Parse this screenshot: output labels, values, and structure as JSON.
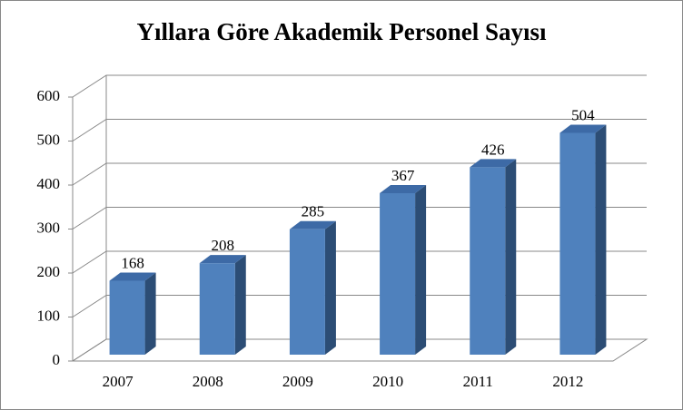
{
  "chart_data": {
    "type": "bar3d",
    "title": "Yıllara Göre Akademik Personel Sayısı",
    "categories": [
      "2007",
      "2008",
      "2009",
      "2010",
      "2011",
      "2012"
    ],
    "values": [
      168,
      208,
      285,
      367,
      426,
      504
    ],
    "color": "#4f81bd",
    "ylim": [
      0,
      600
    ],
    "yticks": [
      0,
      100,
      200,
      300,
      400,
      500,
      600
    ],
    "grid": true
  }
}
